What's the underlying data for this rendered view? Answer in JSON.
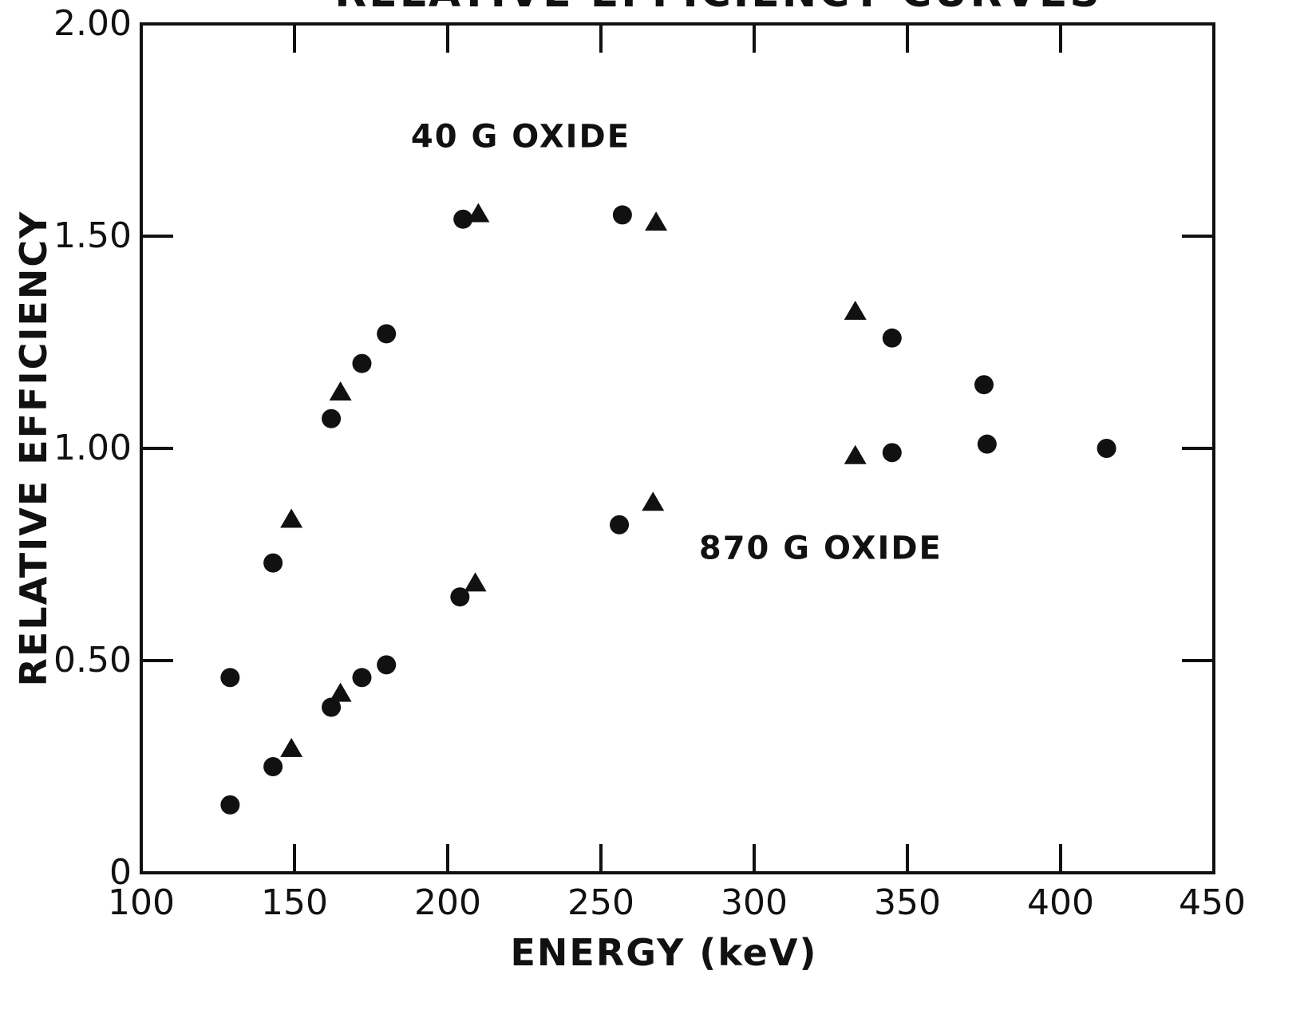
{
  "chart_data": {
    "type": "scatter",
    "title": "RELATIVE EFFICIENCY CURVES",
    "xlabel": "ENERGY (keV)",
    "ylabel": "RELATIVE EFFICIENCY",
    "xlim": [
      100,
      450
    ],
    "ylim": [
      0,
      2.0
    ],
    "x_ticks": [
      100,
      150,
      200,
      250,
      300,
      350,
      400,
      450
    ],
    "x_tick_labels": [
      "100",
      "150",
      "200",
      "250",
      "300",
      "350",
      "400",
      "450"
    ],
    "y_ticks": [
      0,
      0.5,
      1.0,
      1.5,
      2.0
    ],
    "y_tick_labels": [
      "0",
      "0.50",
      "1.00",
      "1.50",
      "2.00"
    ],
    "grid": false,
    "legend": "none",
    "annotations": [
      {
        "text": "40 G OXIDE",
        "x": 188,
        "y": 1.71
      },
      {
        "text": "870 G OXIDE",
        "x": 282,
        "y": 0.74
      }
    ],
    "series": [
      {
        "marker": "circle",
        "group": "40 G OXIDE",
        "x": [
          129,
          143,
          162,
          172,
          180,
          205,
          257,
          345,
          375,
          415
        ],
        "y": [
          0.46,
          0.73,
          1.07,
          1.2,
          1.27,
          1.54,
          1.55,
          1.26,
          1.15,
          1.0
        ]
      },
      {
        "marker": "triangle",
        "group": "40 G OXIDE",
        "x": [
          149,
          165,
          210,
          268,
          333
        ],
        "y": [
          0.83,
          1.13,
          1.55,
          1.53,
          1.32
        ]
      },
      {
        "marker": "circle",
        "group": "870 G OXIDE",
        "x": [
          129,
          143,
          162,
          172,
          180,
          204,
          256,
          345,
          376
        ],
        "y": [
          0.16,
          0.25,
          0.39,
          0.46,
          0.49,
          0.65,
          0.82,
          0.99,
          1.01
        ]
      },
      {
        "marker": "triangle",
        "group": "870 G OXIDE",
        "x": [
          149,
          165,
          209,
          267,
          333
        ],
        "y": [
          0.29,
          0.42,
          0.68,
          0.87,
          0.98
        ]
      }
    ]
  }
}
